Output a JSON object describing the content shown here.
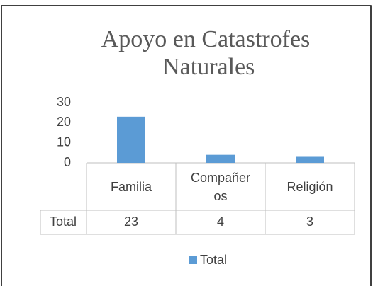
{
  "chart_data": {
    "type": "bar",
    "title": "Apoyo en Catastrofes Naturales",
    "categories": [
      "Familia",
      "Compañeros",
      "Religión"
    ],
    "series": [
      {
        "name": "Total",
        "color": "#5b9bd5",
        "values": [
          23,
          4,
          3
        ]
      }
    ],
    "ylim": [
      0,
      30
    ],
    "yticks": [
      0,
      10,
      20,
      30
    ],
    "grid": false,
    "legend": "bottom",
    "data_table": true
  }
}
